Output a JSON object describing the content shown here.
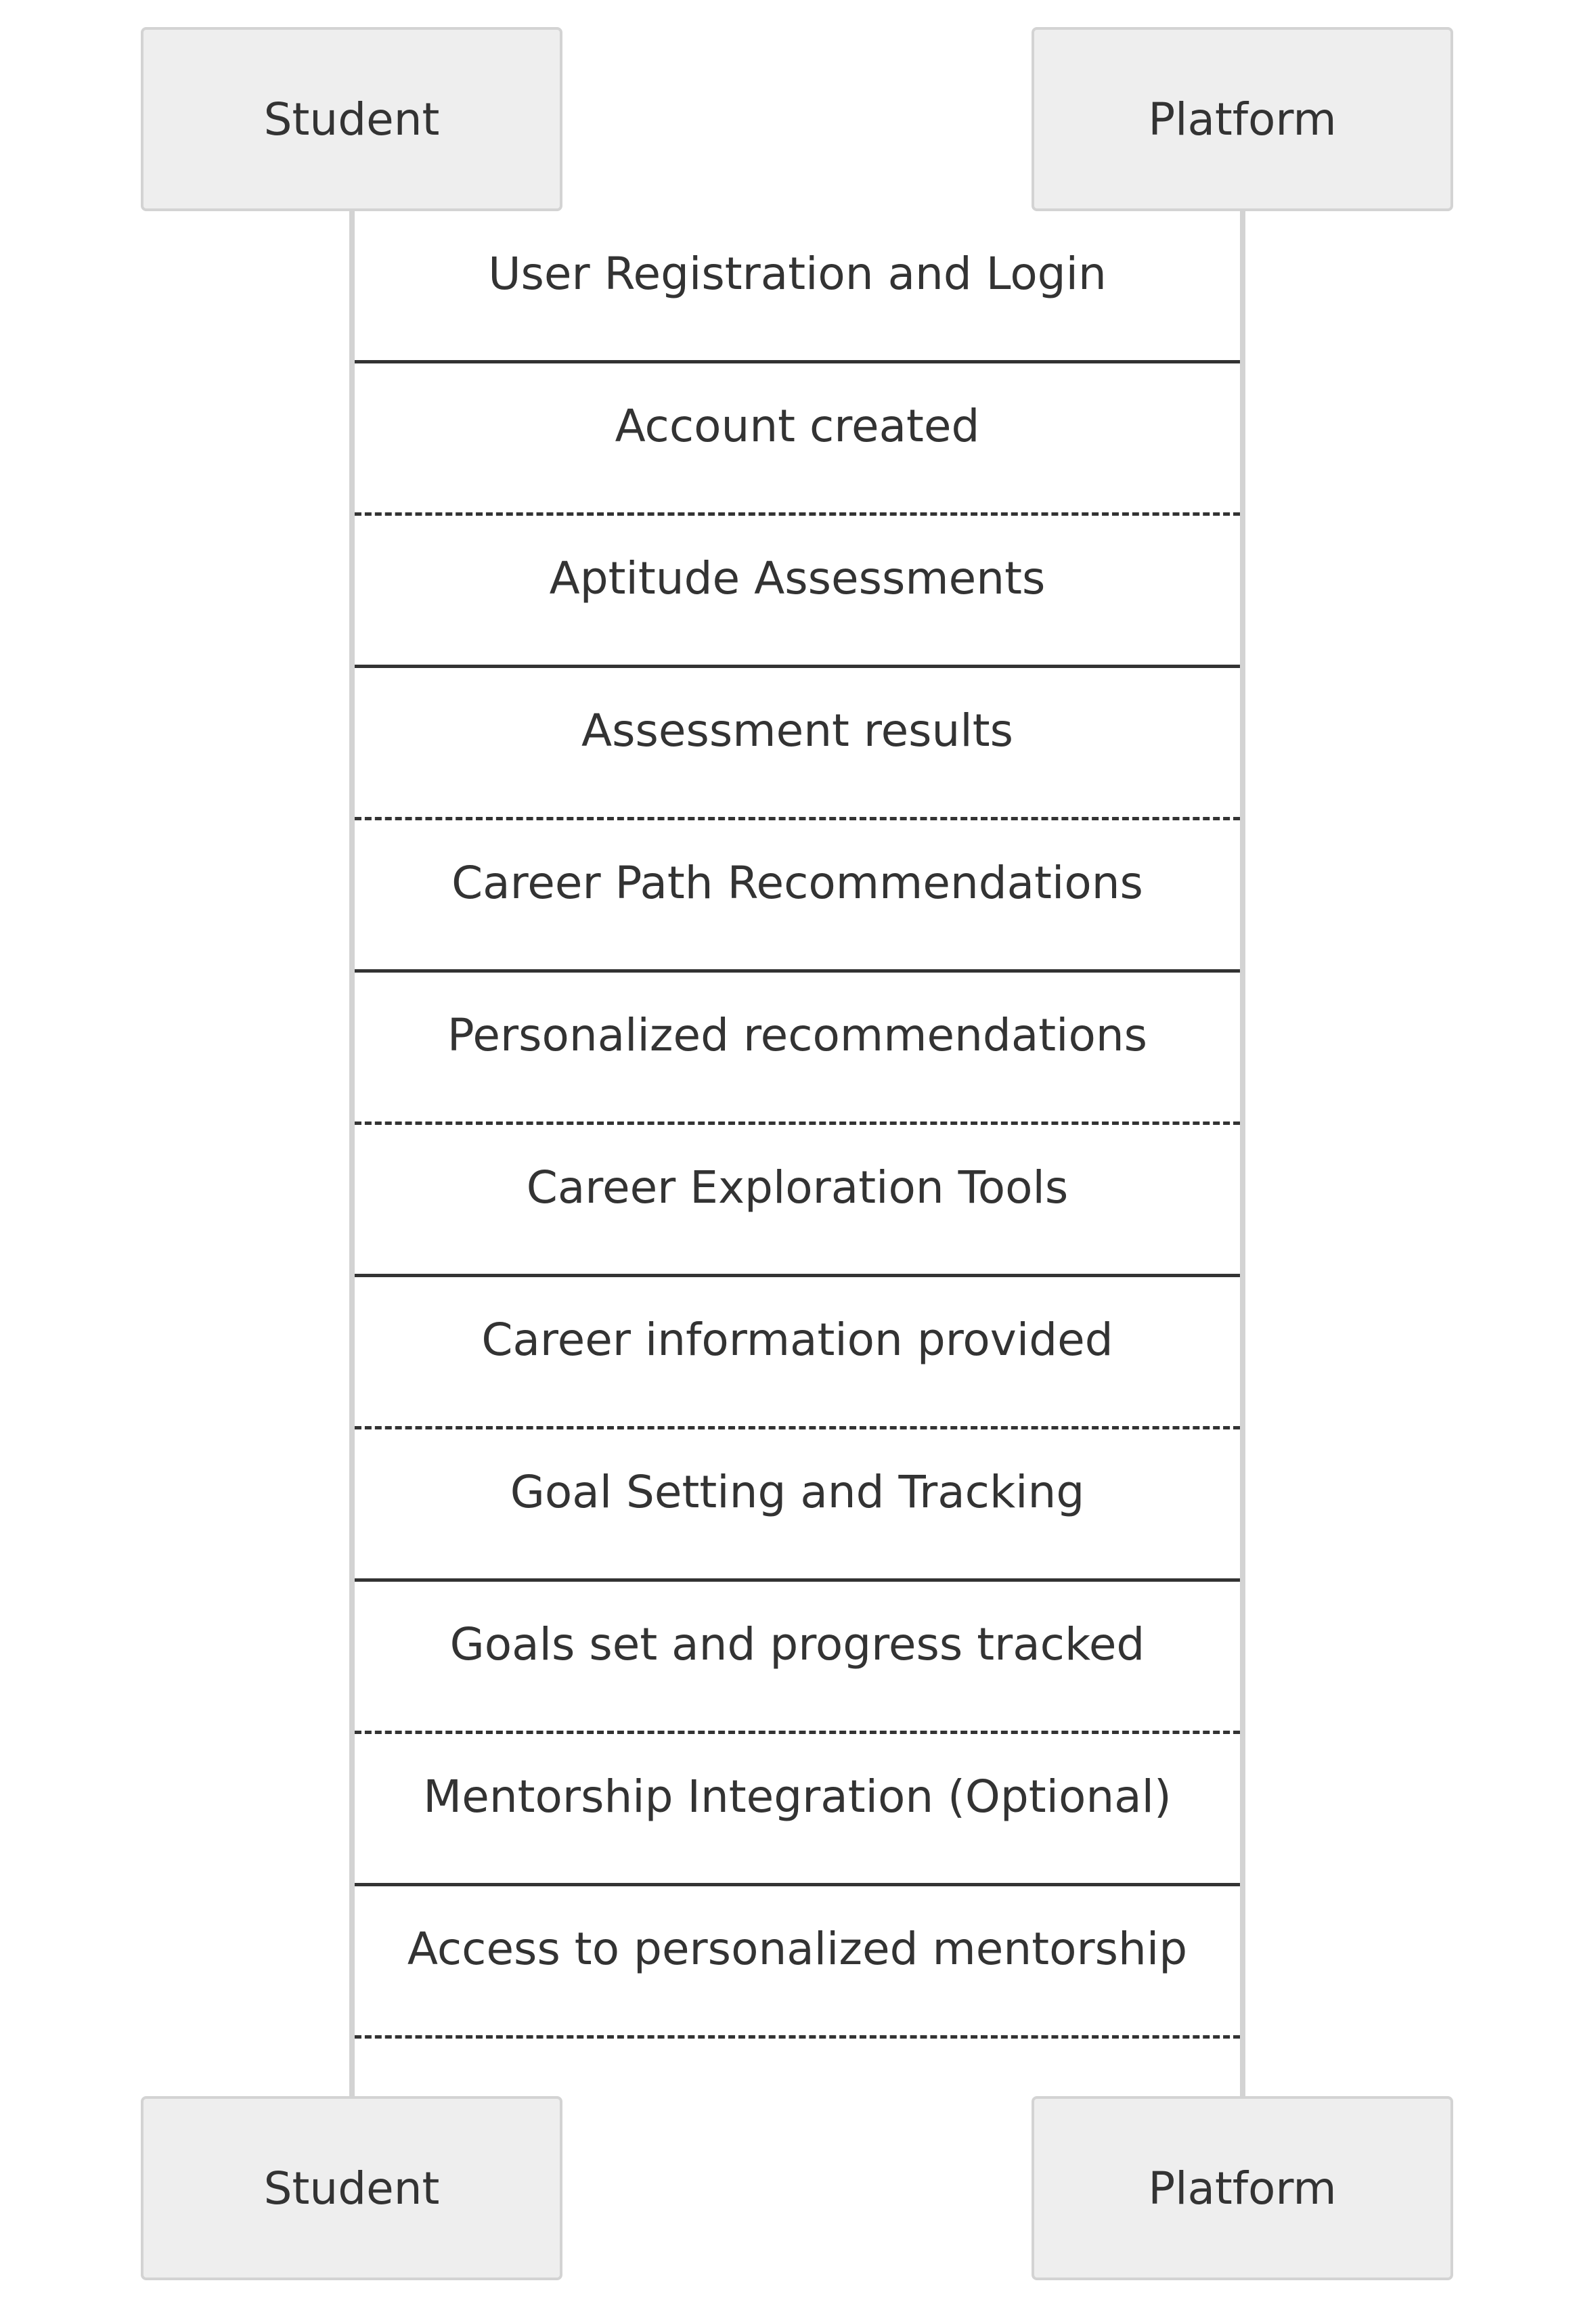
{
  "participants": {
    "student": "Student",
    "platform": "Platform"
  },
  "messages": [
    {
      "label": "User Registration and Login",
      "from": "Student",
      "to": "Platform",
      "line": "solid"
    },
    {
      "label": "Account created",
      "from": "Platform",
      "to": "Student",
      "line": "dotted"
    },
    {
      "label": "Aptitude Assessments",
      "from": "Student",
      "to": "Platform",
      "line": "solid"
    },
    {
      "label": "Assessment results",
      "from": "Platform",
      "to": "Student",
      "line": "dotted"
    },
    {
      "label": "Career Path Recommendations",
      "from": "Student",
      "to": "Platform",
      "line": "solid"
    },
    {
      "label": "Personalized recommendations",
      "from": "Platform",
      "to": "Student",
      "line": "dotted"
    },
    {
      "label": "Career Exploration Tools",
      "from": "Student",
      "to": "Platform",
      "line": "solid"
    },
    {
      "label": "Career information provided",
      "from": "Platform",
      "to": "Student",
      "line": "dotted"
    },
    {
      "label": "Goal Setting and Tracking",
      "from": "Student",
      "to": "Platform",
      "line": "solid"
    },
    {
      "label": "Goals set and progress tracked",
      "from": "Platform",
      "to": "Student",
      "line": "dotted"
    },
    {
      "label": "Mentorship Integration (Optional)",
      "from": "Student",
      "to": "Platform",
      "line": "solid"
    },
    {
      "label": "Access to personalized mentorship",
      "from": "Platform",
      "to": "Student",
      "line": "dotted"
    }
  ],
  "colors": {
    "actor_fill": "#eeeeee",
    "actor_border": "#d3d3d3",
    "lifeline": "#d3d3d3",
    "text": "#333333",
    "message_line": "#333333"
  }
}
